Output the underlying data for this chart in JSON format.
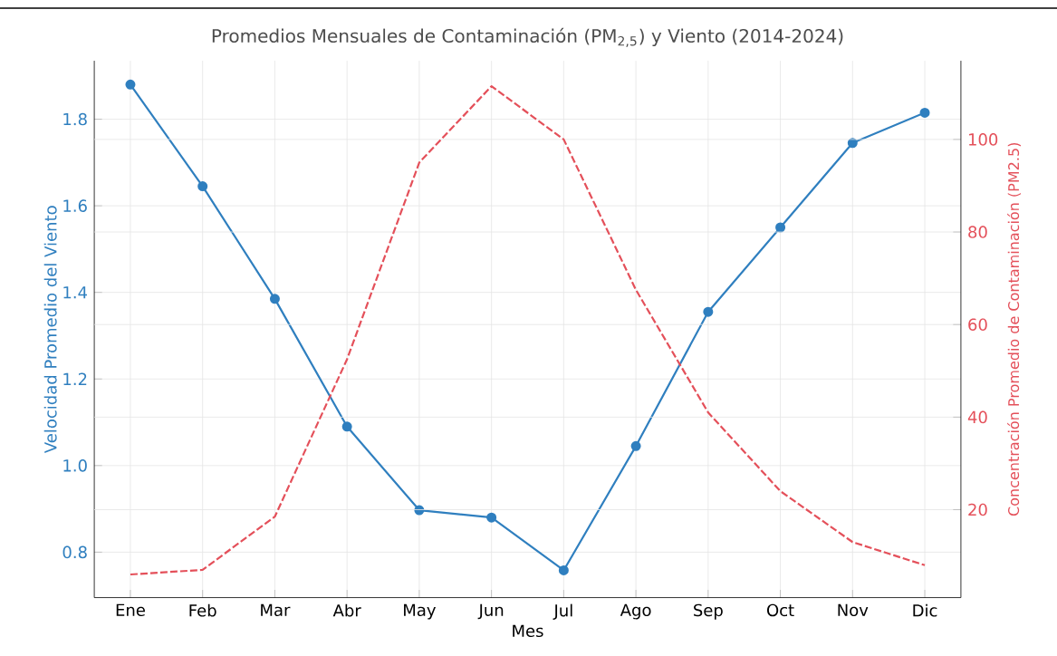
{
  "chart_data": {
    "type": "line",
    "title": "Promedios Mensuales de Contaminación (PM$_{2,5}$) y Viento (2014-2024)",
    "xlabel": "Mes",
    "ylabel": "Velocidad Promedio del Viento",
    "y2label": "Concentración Promedio de Contaminación (PM2.5)",
    "categories": [
      "Ene",
      "Feb",
      "Mar",
      "Abr",
      "May",
      "Jun",
      "Jul",
      "Ago",
      "Sep",
      "Oct",
      "Nov",
      "Dic"
    ],
    "series": [
      {
        "color": "#2f7fbf",
        "marker": "circle",
        "line_style": "solid",
        "values": [
          1.88,
          1.645,
          1.385,
          1.09,
          0.897,
          0.88,
          0.758,
          1.045,
          1.355,
          1.55,
          1.745,
          1.815
        ]
      },
      {
        "color": "#e4505a",
        "marker": "none",
        "line_style": "dashed",
        "axis": "y2",
        "values": [
          6,
          7,
          18.5,
          52.5,
          95,
          111.5,
          100,
          67.5,
          41,
          24,
          13,
          8
        ]
      }
    ],
    "ylim": [
      0.695,
      1.935
    ],
    "yticks": [
      {
        "value": 0.8,
        "label": "0.8"
      },
      {
        "value": 1.0,
        "label": "1.0"
      },
      {
        "value": 1.2,
        "label": "1.2"
      },
      {
        "value": 1.4,
        "label": "1.4"
      },
      {
        "value": 1.6,
        "label": "1.6"
      },
      {
        "value": 1.8,
        "label": "1.8"
      }
    ],
    "y2lim": [
      1,
      117
    ],
    "y2ticks": [
      20,
      40,
      60,
      80,
      100
    ],
    "grid": true
  }
}
